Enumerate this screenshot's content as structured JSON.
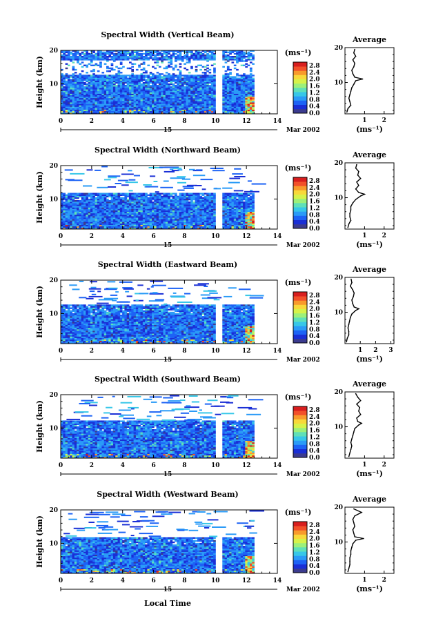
{
  "chart_data": {
    "type": "heatmap",
    "xlabel": "Local Time",
    "date_label": "Mar 2002",
    "time_marker_label": "15",
    "colorbar": {
      "unit": "(ms⁻¹)",
      "ticks": [
        "0.0",
        "0.4",
        "0.8",
        "1.2",
        "1.6",
        "2.0",
        "2.4",
        "2.8"
      ],
      "range": [
        0.0,
        3.0
      ],
      "colors": [
        "#3b3b8f",
        "#1a2fd6",
        "#1d63f5",
        "#2a9bf7",
        "#37c7e8",
        "#5fe0b8",
        "#9cf07a",
        "#d6f24a",
        "#f8d83a",
        "#f89a2c",
        "#f2502a",
        "#d81e1e"
      ]
    },
    "x_ticks": [
      "0",
      "2",
      "4",
      "6",
      "8",
      "10",
      "12",
      "14"
    ],
    "xlim": [
      0,
      14
    ],
    "y_ticks": [
      "10",
      "20"
    ],
    "ylim": [
      1,
      20
    ],
    "data_gap_hours": [
      10.0,
      10.3
    ],
    "data_end_hour": 12.5,
    "panels": [
      {
        "title": "Spectral Width (Vertical Beam)",
        "ylabel": "Height (km)",
        "avg_title": "Average",
        "avg_xlabel": "(ms⁻¹)",
        "avg_xticks": [
          "1",
          "2"
        ],
        "avg_xlim": [
          0,
          2.5
        ],
        "avg_profile": [
          [
            0.1,
            1.5
          ],
          [
            0.15,
            2.5
          ],
          [
            0.3,
            3.5
          ],
          [
            0.25,
            4.5
          ],
          [
            0.2,
            5.5
          ],
          [
            0.25,
            6.5
          ],
          [
            0.3,
            7.5
          ],
          [
            0.35,
            8.5
          ],
          [
            0.45,
            9.5
          ],
          [
            0.55,
            10.5
          ],
          [
            0.9,
            11.0
          ],
          [
            0.5,
            11.5
          ],
          [
            0.4,
            12.5
          ],
          [
            0.35,
            13.5
          ],
          [
            0.45,
            14.5
          ],
          [
            0.5,
            15.5
          ],
          [
            0.4,
            16.5
          ],
          [
            0.55,
            17.5
          ],
          [
            0.45,
            18.5
          ],
          [
            0.5,
            19.5
          ]
        ]
      },
      {
        "title": "Spectral Width (Northward Beam)",
        "ylabel": "Height (km)",
        "avg_title": "Average",
        "avg_xlabel": "(ms⁻¹)",
        "avg_xticks": [
          "1",
          "2"
        ],
        "avg_xlim": [
          0,
          2.5
        ],
        "avg_profile": [
          [
            0.15,
            1.5
          ],
          [
            0.2,
            2.5
          ],
          [
            0.3,
            3.5
          ],
          [
            0.25,
            4.5
          ],
          [
            0.25,
            5.5
          ],
          [
            0.3,
            6.5
          ],
          [
            0.3,
            7.5
          ],
          [
            0.4,
            8.5
          ],
          [
            0.55,
            9.5
          ],
          [
            0.8,
            10.5
          ],
          [
            1.0,
            11.0
          ],
          [
            0.7,
            11.5
          ],
          [
            0.55,
            12.5
          ],
          [
            0.7,
            13.5
          ],
          [
            0.6,
            14.5
          ],
          [
            0.8,
            15.5
          ],
          [
            0.65,
            16.5
          ],
          [
            0.7,
            17.5
          ],
          [
            0.55,
            18.5
          ],
          [
            0.6,
            19.5
          ]
        ]
      },
      {
        "title": "Spectral Width (Eastward Beam)",
        "ylabel": "Height (km)",
        "avg_title": "Average",
        "avg_xlabel": "(ms⁻¹)",
        "avg_xticks": [
          "1",
          "2",
          "3"
        ],
        "avg_xlim": [
          0,
          3.2
        ],
        "avg_profile": [
          [
            0.1,
            1.5
          ],
          [
            0.15,
            2.5
          ],
          [
            0.25,
            3.5
          ],
          [
            0.25,
            4.5
          ],
          [
            0.2,
            5.5
          ],
          [
            0.25,
            6.5
          ],
          [
            0.3,
            7.5
          ],
          [
            0.35,
            8.5
          ],
          [
            0.45,
            9.5
          ],
          [
            0.7,
            10.5
          ],
          [
            0.9,
            11.0
          ],
          [
            0.6,
            11.5
          ],
          [
            0.5,
            12.5
          ],
          [
            0.45,
            13.5
          ],
          [
            0.55,
            14.5
          ],
          [
            0.6,
            15.5
          ],
          [
            0.5,
            16.5
          ],
          [
            0.35,
            17.5
          ],
          [
            0.45,
            18.5
          ],
          [
            0.4,
            19.5
          ]
        ]
      },
      {
        "title": "Spectral Width (Southward Beam)",
        "ylabel": "Height (km)",
        "avg_title": "Average",
        "avg_xlabel": "(ms⁻¹)",
        "avg_xticks": [
          "1",
          "2"
        ],
        "avg_xlim": [
          0,
          2.5
        ],
        "avg_profile": [
          [
            0.2,
            1.5
          ],
          [
            0.25,
            2.5
          ],
          [
            0.3,
            3.5
          ],
          [
            0.35,
            4.5
          ],
          [
            0.3,
            5.5
          ],
          [
            0.35,
            6.5
          ],
          [
            0.4,
            7.5
          ],
          [
            0.45,
            8.5
          ],
          [
            0.5,
            9.5
          ],
          [
            0.7,
            10.5
          ],
          [
            0.85,
            11.0
          ],
          [
            0.65,
            11.5
          ],
          [
            0.6,
            12.5
          ],
          [
            0.8,
            13.5
          ],
          [
            0.7,
            14.5
          ],
          [
            0.75,
            15.5
          ],
          [
            0.6,
            16.5
          ],
          [
            0.8,
            17.5
          ],
          [
            0.65,
            18.5
          ],
          [
            0.55,
            19.5
          ]
        ]
      },
      {
        "title": "Spectral Width (Westward Beam)",
        "ylabel": "Height (km)",
        "avg_title": "Average",
        "avg_xlabel": "(ms⁻¹)",
        "avg_xticks": [
          "1",
          "2"
        ],
        "avg_xlim": [
          0,
          2.5
        ],
        "avg_profile": [
          [
            0.15,
            1.5
          ],
          [
            0.2,
            2.5
          ],
          [
            0.25,
            3.5
          ],
          [
            0.25,
            4.5
          ],
          [
            0.25,
            5.5
          ],
          [
            0.3,
            6.5
          ],
          [
            0.3,
            7.5
          ],
          [
            0.35,
            8.5
          ],
          [
            0.4,
            9.5
          ],
          [
            0.55,
            10.5
          ],
          [
            0.95,
            11.0
          ],
          [
            0.5,
            11.5
          ],
          [
            0.45,
            12.5
          ],
          [
            0.4,
            13.5
          ],
          [
            0.5,
            14.5
          ],
          [
            0.45,
            15.5
          ],
          [
            0.4,
            16.5
          ],
          [
            0.5,
            17.5
          ],
          [
            0.85,
            18.5
          ],
          [
            0.45,
            19.5
          ]
        ]
      }
    ]
  }
}
